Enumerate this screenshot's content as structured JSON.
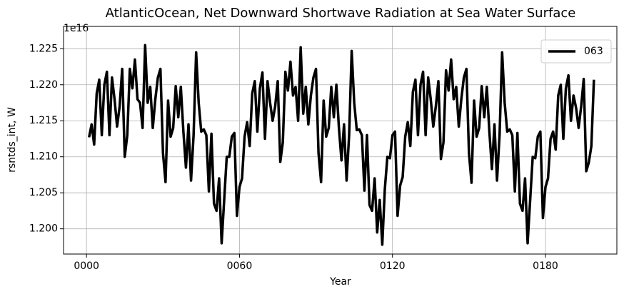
{
  "chart_data": {
    "type": "line",
    "title": "AtlanticOcean, Net Downward Shortwave Radiation at Sea Water Surface",
    "x_label": "Year",
    "y_label": "rsntds_int, W",
    "y_offset_label": "1e16",
    "xlim": [
      -9,
      208
    ],
    "ylim": [
      1.1965,
      1.2281
    ],
    "xticks": [
      {
        "value": 0,
        "label": "0000"
      },
      {
        "value": 60,
        "label": "0060"
      },
      {
        "value": 120,
        "label": "0120"
      },
      {
        "value": 180,
        "label": "0180"
      }
    ],
    "yticks": [
      {
        "value": 1.2,
        "label": "1.200"
      },
      1.205,
      {
        "value": 1.21,
        "label": "1.210"
      },
      1.215,
      {
        "value": 1.22,
        "label": "1.220"
      },
      1.225
    ],
    "grid": true,
    "legend": "upper right",
    "x": [
      1,
      2,
      3,
      4,
      5,
      6,
      7,
      8,
      9,
      10,
      11,
      12,
      13,
      14,
      15,
      16,
      17,
      18,
      19,
      20,
      21,
      22,
      23,
      24,
      25,
      26,
      27,
      28,
      29,
      30,
      31,
      32,
      33,
      34,
      35,
      36,
      37,
      38,
      39,
      40,
      41,
      42,
      43,
      44,
      45,
      46,
      47,
      48,
      49,
      50,
      51,
      52,
      53,
      54,
      55,
      56,
      57,
      58,
      59,
      60,
      61,
      62,
      63,
      64,
      65,
      66,
      67,
      68,
      69,
      70,
      71,
      72,
      73,
      74,
      75,
      76,
      77,
      78,
      79,
      80,
      81,
      82,
      83,
      84,
      85,
      86,
      87,
      88,
      89,
      90,
      91,
      92,
      93,
      94,
      95,
      96,
      97,
      98,
      99,
      100,
      101,
      102,
      103,
      104,
      105,
      106,
      107,
      108,
      109,
      110,
      111,
      112,
      113,
      114,
      115,
      116,
      117,
      118,
      119,
      120,
      121,
      122,
      123,
      124,
      125,
      126,
      127,
      128,
      129,
      130,
      131,
      132,
      133,
      134,
      135,
      136,
      137,
      138,
      139,
      140,
      141,
      142,
      143,
      144,
      145,
      146,
      147,
      148,
      149,
      150,
      151,
      152,
      153,
      154,
      155,
      156,
      157,
      158,
      159,
      160,
      161,
      162,
      163,
      164,
      165,
      166,
      167,
      168,
      169,
      170,
      171,
      172,
      173,
      174,
      175,
      176,
      177,
      178,
      179,
      180,
      181,
      182,
      183,
      184,
      185,
      186,
      187,
      188,
      189,
      190,
      191,
      192,
      193,
      194,
      195,
      196,
      197,
      198,
      199
    ],
    "series": [
      {
        "name": "063",
        "color": "#000000",
        "values": [
          1.2127,
          1.2145,
          1.2117,
          1.2188,
          1.2207,
          1.213,
          1.22,
          1.2218,
          1.213,
          1.221,
          1.218,
          1.2142,
          1.217,
          1.2222,
          1.21,
          1.213,
          1.2222,
          1.2195,
          1.2235,
          1.218,
          1.2175,
          1.214,
          1.2255,
          1.2175,
          1.2197,
          1.214,
          1.218,
          1.221,
          1.2222,
          1.2105,
          1.2065,
          1.2178,
          1.2128,
          1.214,
          1.2198,
          1.2155,
          1.2197,
          1.2135,
          1.2085,
          1.2145,
          1.2067,
          1.213,
          1.2245,
          1.2175,
          1.2135,
          1.2138,
          1.213,
          1.2052,
          1.2132,
          1.2035,
          1.2025,
          1.207,
          1.198,
          1.204,
          1.21,
          1.21,
          1.2128,
          1.2133,
          1.2018,
          1.2058,
          1.207,
          1.2128,
          1.2148,
          1.2115,
          1.2188,
          1.2205,
          1.2135,
          1.2195,
          1.2217,
          1.2125,
          1.2205,
          1.2175,
          1.215,
          1.217,
          1.2205,
          1.2093,
          1.212,
          1.2218,
          1.2192,
          1.2232,
          1.2185,
          1.2197,
          1.215,
          1.2252,
          1.216,
          1.2197,
          1.2145,
          1.2185,
          1.221,
          1.2222,
          1.2105,
          1.2065,
          1.2178,
          1.2128,
          1.214,
          1.2197,
          1.2155,
          1.22,
          1.214,
          1.2095,
          1.2145,
          1.2067,
          1.213,
          1.2247,
          1.2175,
          1.2137,
          1.2138,
          1.213,
          1.2053,
          1.213,
          1.2033,
          1.2025,
          1.207,
          1.1995,
          1.204,
          1.1978,
          1.2055,
          1.21,
          1.2098,
          1.213,
          1.2135,
          1.2018,
          1.206,
          1.2072,
          1.2128,
          1.2148,
          1.2115,
          1.219,
          1.2207,
          1.213,
          1.22,
          1.2218,
          1.213,
          1.221,
          1.218,
          1.2142,
          1.217,
          1.2205,
          1.2097,
          1.212,
          1.222,
          1.2192,
          1.2235,
          1.218,
          1.2197,
          1.2142,
          1.218,
          1.221,
          1.2222,
          1.2105,
          1.2064,
          1.2178,
          1.2128,
          1.214,
          1.2198,
          1.2155,
          1.2197,
          1.2135,
          1.2083,
          1.2145,
          1.2067,
          1.213,
          1.2245,
          1.2175,
          1.2135,
          1.2138,
          1.213,
          1.2052,
          1.2133,
          1.2035,
          1.2025,
          1.207,
          1.198,
          1.204,
          1.21,
          1.2098,
          1.2128,
          1.2135,
          1.2015,
          1.2058,
          1.207,
          1.2125,
          1.2135,
          1.211,
          1.2185,
          1.22,
          1.2125,
          1.2195,
          1.2213,
          1.215,
          1.2185,
          1.2168,
          1.214,
          1.217,
          1.2208,
          1.208,
          1.2092,
          1.2115,
          1.2207
        ]
      }
    ]
  }
}
